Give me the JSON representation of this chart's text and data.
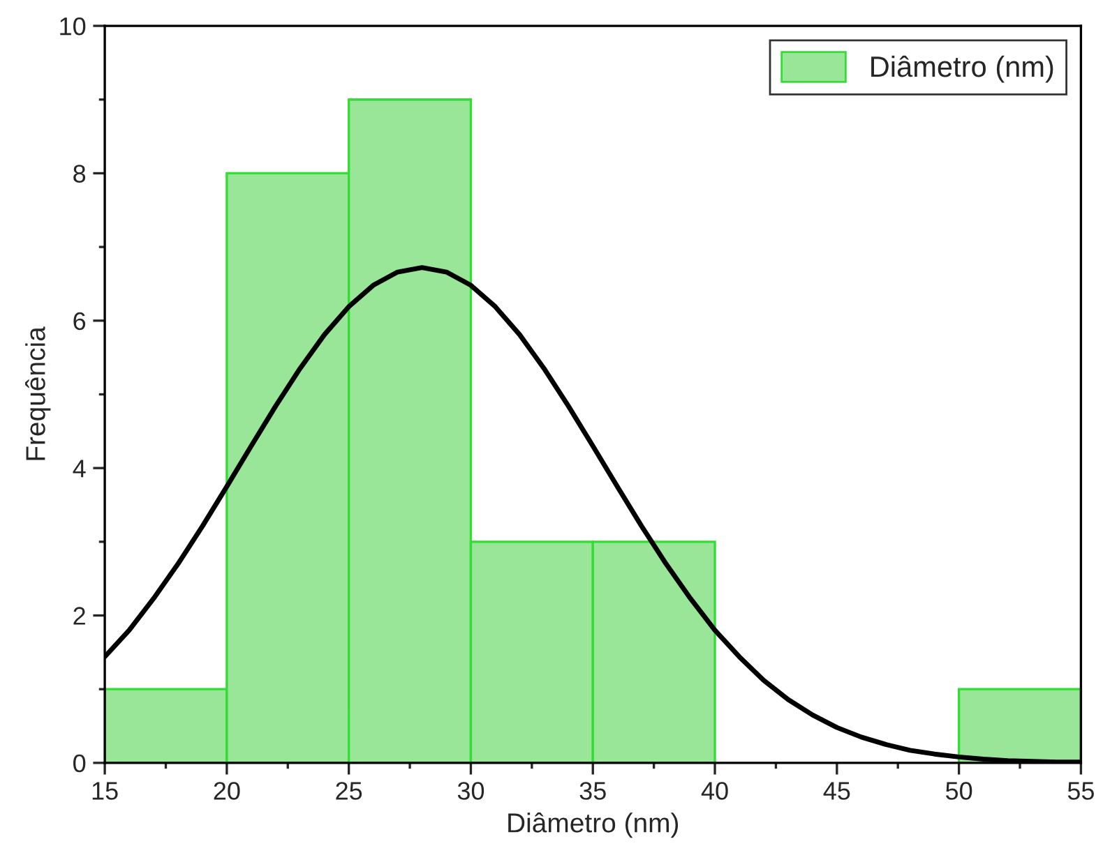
{
  "chart_data": {
    "type": "histogram",
    "xlabel": "Diâmetro (nm)",
    "ylabel": "Frequência",
    "bins": [
      15,
      20,
      25,
      30,
      35,
      40,
      45,
      50,
      55
    ],
    "series": [
      {
        "name": "Diâmetro (nm)",
        "color": "#99e699",
        "values": [
          1,
          8,
          9,
          3,
          3,
          0,
          0,
          1
        ]
      },
      {
        "type": "line",
        "color": "#000000",
        "x": [
          15,
          16,
          17,
          18,
          19,
          20,
          21,
          22,
          23,
          24,
          25,
          26,
          27,
          28,
          29,
          30,
          31,
          32,
          33,
          34,
          35,
          36,
          37,
          38,
          39,
          40,
          41,
          42,
          43,
          44,
          45,
          46,
          47,
          48,
          49,
          50,
          51,
          52,
          53,
          54,
          55
        ],
        "values": [
          1.44,
          1.8,
          2.23,
          2.7,
          3.21,
          3.75,
          4.3,
          4.84,
          5.35,
          5.81,
          6.19,
          6.48,
          6.66,
          6.72,
          6.66,
          6.48,
          6.19,
          5.81,
          5.35,
          4.84,
          4.3,
          3.75,
          3.21,
          2.7,
          2.23,
          1.8,
          1.44,
          1.12,
          0.86,
          0.65,
          0.48,
          0.35,
          0.25,
          0.17,
          0.12,
          0.08,
          0.05,
          0.03,
          0.02,
          0.01,
          0.01
        ]
      }
    ],
    "xlim": [
      15,
      55
    ],
    "xticks": [
      15,
      20,
      25,
      30,
      35,
      40,
      45,
      50,
      55
    ],
    "ylim": [
      0,
      10
    ],
    "yticks": [
      0,
      2,
      4,
      6,
      8,
      10
    ],
    "legend": "top right",
    "grid": false
  }
}
